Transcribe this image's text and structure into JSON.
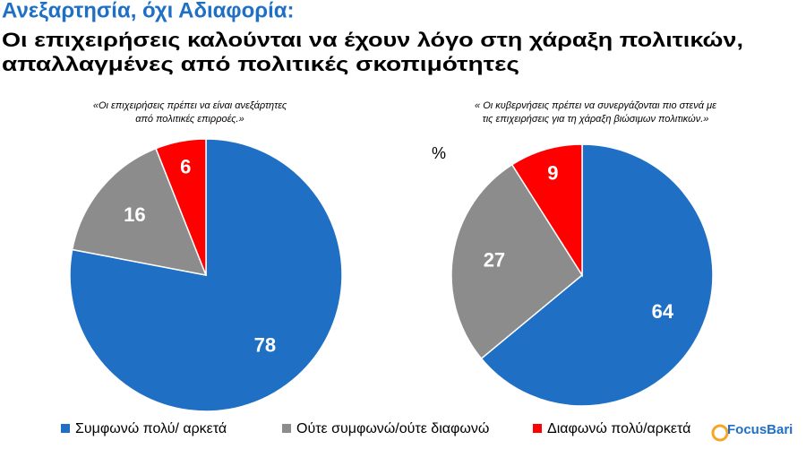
{
  "header": {
    "title": "Ανεξαρτησία, όχι Αδιαφορία:",
    "subtitle": [
      "Οι επιχειρήσεις καλούνται να έχουν λόγο στη χάραξη πολιτικών,",
      "απαλλαγμένες από πολιτικές σκοπιμότητες"
    ]
  },
  "unit": "%",
  "logo": "FocusBari",
  "chart_data": [
    {
      "type": "pie",
      "title": [
        "«Οι επιχειρήσεις πρέπει να είναι ανεξάρτητες",
        "από πολιτικές επιρροές.»"
      ],
      "categories": [
        "Συμφωνώ πολύ/ αρκετά",
        "Ούτε συμφωνώ/ούτε διαφωνώ",
        "Διαφωνώ πολύ/αρκετά"
      ],
      "values": [
        78,
        16,
        6
      ],
      "colors": [
        "#1f6fc5",
        "#8c8c8c",
        "#ff0000"
      ]
    },
    {
      "type": "pie",
      "title": [
        "« Οι κυβερνήσεις πρέπει να συνεργάζονται πιο στενά με",
        "τις επιχειρήσεις για τη χάραξη βιώσιμων πολιτικών.»"
      ],
      "categories": [
        "Συμφωνώ πολύ/ αρκετά",
        "Ούτε συμφωνώ/ούτε διαφωνώ",
        "Διαφωνώ πολύ/αρκετά"
      ],
      "values": [
        64,
        27,
        9
      ],
      "colors": [
        "#1f6fc5",
        "#8c8c8c",
        "#ff0000"
      ]
    }
  ]
}
